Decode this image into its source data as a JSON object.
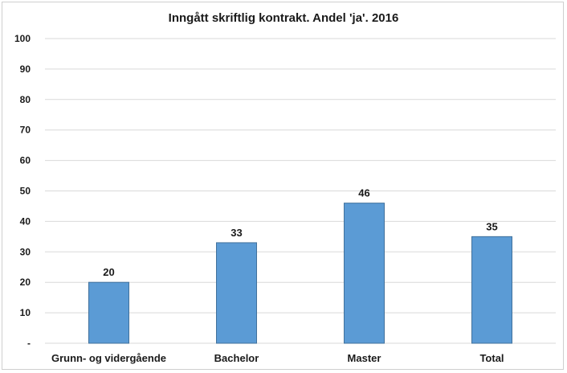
{
  "chart_data": {
    "type": "bar",
    "title": "Inngått skriftlig kontrakt. Andel 'ja'. 2016",
    "xlabel": "",
    "ylabel": "",
    "categories": [
      "Grunn- og vidergående",
      "Bachelor",
      "Master",
      "Total"
    ],
    "values": [
      20,
      33,
      46,
      35
    ],
    "data_labels": [
      "20",
      "33",
      "46",
      "35"
    ],
    "ylim": [
      0,
      100
    ],
    "y_ticks": [
      0,
      10,
      20,
      30,
      40,
      50,
      60,
      70,
      80,
      90,
      100
    ],
    "y_tick_labels": [
      "-",
      "10",
      "20",
      "30",
      "40",
      "50",
      "60",
      "70",
      "80",
      "90",
      "100"
    ],
    "grid": true,
    "legend": "none",
    "bar_color": "#5b9bd5",
    "bar_edge_color": "#41719c",
    "grid_color": "#d9d9d9"
  }
}
